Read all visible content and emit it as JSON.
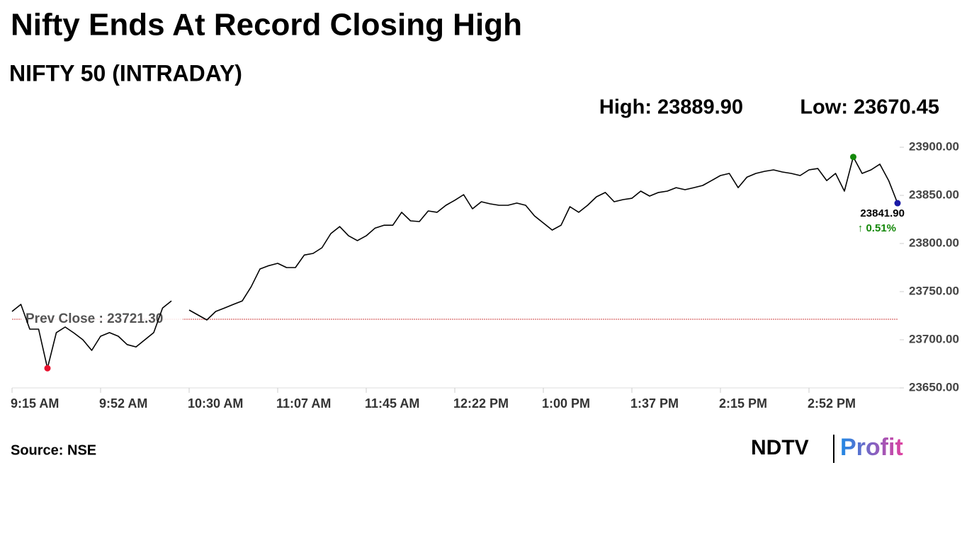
{
  "chart_data": {
    "type": "line",
    "title": "Nifty Ends At Record Closing High",
    "subtitle": "NIFTY 50 (INTRADAY)",
    "high_label": "High: 23889.90",
    "low_label": "Low: 23670.45",
    "source": "Source: NSE",
    "logo": {
      "left": "NDTV",
      "right": "Profit"
    },
    "color": "#000000",
    "categories": [
      "9:15 AM",
      null,
      null,
      null,
      null,
      null,
      null,
      null,
      null,
      null,
      "9:52 AM",
      null,
      null,
      null,
      null,
      null,
      null,
      null,
      null,
      null,
      "10:30 AM",
      null,
      null,
      null,
      null,
      null,
      null,
      null,
      null,
      null,
      "11:07 AM",
      null,
      null,
      null,
      null,
      null,
      null,
      null,
      null,
      null,
      "11:45 AM",
      null,
      null,
      null,
      null,
      null,
      null,
      null,
      null,
      null,
      "12:22 PM",
      null,
      null,
      null,
      null,
      null,
      null,
      null,
      null,
      null,
      "1:00 PM",
      null,
      null,
      null,
      null,
      null,
      null,
      null,
      null,
      null,
      "1:37 PM",
      null,
      null,
      null,
      null,
      null,
      null,
      null,
      null,
      null,
      "2:15 PM",
      null,
      null,
      null,
      null,
      null,
      null,
      null,
      null,
      null,
      "2:52 PM",
      null,
      null,
      null,
      null,
      null,
      null,
      null,
      null,
      null,
      null
    ],
    "values": [
      23729.4,
      23736.8,
      23711,
      23711,
      23670.45,
      23707.4,
      23713.2,
      23707,
      23700,
      23689,
      23703.7,
      23707.4,
      23703.7,
      23695,
      23692.6,
      23700,
      23707.4,
      23733,
      23740.4,
      null,
      23730.9,
      23725.7,
      23720.6,
      23729.4,
      23733,
      23736.8,
      23740.4,
      23755,
      23773.5,
      23777,
      23779.4,
      23775,
      23775,
      23788,
      23789.7,
      23795.6,
      23810.3,
      23817.6,
      23808,
      23803,
      23808,
      23816,
      23819,
      23819,
      23832.4,
      23823.5,
      23822.8,
      23833.8,
      23832.4,
      23839.7,
      23844.9,
      23850.7,
      23836,
      23843.4,
      23841.2,
      23839.7,
      23839.7,
      23842,
      23839.7,
      23828.7,
      23821.3,
      23814,
      23819,
      23838.2,
      23832.4,
      23839.7,
      23848.5,
      23853,
      23843.4,
      23845.6,
      23847,
      23854.4,
      23849.3,
      23853,
      23854.4,
      23858,
      23855.9,
      23858,
      23860.3,
      23865.4,
      23870.6,
      23872.8,
      23858,
      23869,
      23872.8,
      23875,
      23876.5,
      23874.3,
      23872.8,
      23870.6,
      23876.5,
      23877.9,
      23865.4,
      23872.8,
      23854.4,
      23889.9,
      23872.8,
      23876.5,
      23882.4,
      23865.4,
      23841.9
    ],
    "markers": [
      {
        "index": 4,
        "color": "#e8112d"
      },
      {
        "index": 95,
        "color": "#138808"
      },
      {
        "index": 100,
        "color": "#1a1aa6"
      }
    ],
    "prev_close": {
      "value": 23721.3,
      "label": "Prev Close : 23721.30",
      "color": "#c00000"
    },
    "last_label": "23841.90",
    "change_label": "↑ 0.51%",
    "change_color": "#138808",
    "ylim": [
      23650,
      23900
    ],
    "yticks": [
      {
        "value": 23650,
        "label": "23650.00"
      },
      {
        "value": 23700,
        "label": "23700.00"
      },
      {
        "value": 23750,
        "label": "23750.00"
      },
      {
        "value": 23800,
        "label": "23800.00"
      },
      {
        "value": 23850,
        "label": "23850.00"
      },
      {
        "value": 23900,
        "label": "23900.00"
      }
    ],
    "grid": false
  }
}
